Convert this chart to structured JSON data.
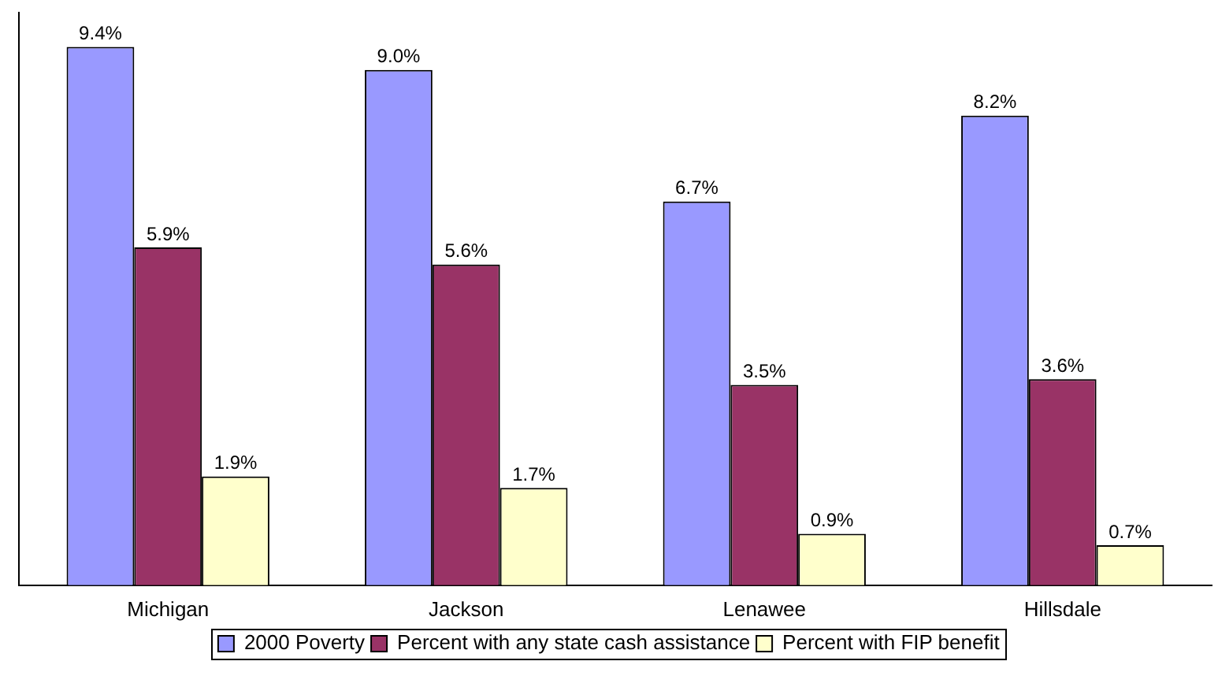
{
  "chart_data": {
    "type": "bar",
    "categories": [
      "Michigan",
      "Jackson",
      "Lenawee",
      "Hillsdale"
    ],
    "series": [
      {
        "name": "2000 Poverty",
        "color": "#9999ff",
        "values": [
          9.4,
          9.0,
          6.7,
          8.2
        ],
        "value_labels": [
          "9.4%",
          "9.0%",
          "6.7%",
          "8.2%"
        ]
      },
      {
        "name": "Percent with any state cash assistance",
        "color": "#993366",
        "values": [
          5.9,
          5.6,
          3.5,
          3.6
        ],
        "value_labels": [
          "5.9%",
          "5.6%",
          "3.5%",
          "3.6%"
        ]
      },
      {
        "name": "Percent with FIP benefit",
        "color": "#ffffcc",
        "values": [
          1.9,
          1.7,
          0.9,
          0.7
        ],
        "value_labels": [
          "1.9%",
          "1.7%",
          "0.9%",
          "0.7%"
        ]
      }
    ],
    "legend": "bottom",
    "grid": false
  }
}
